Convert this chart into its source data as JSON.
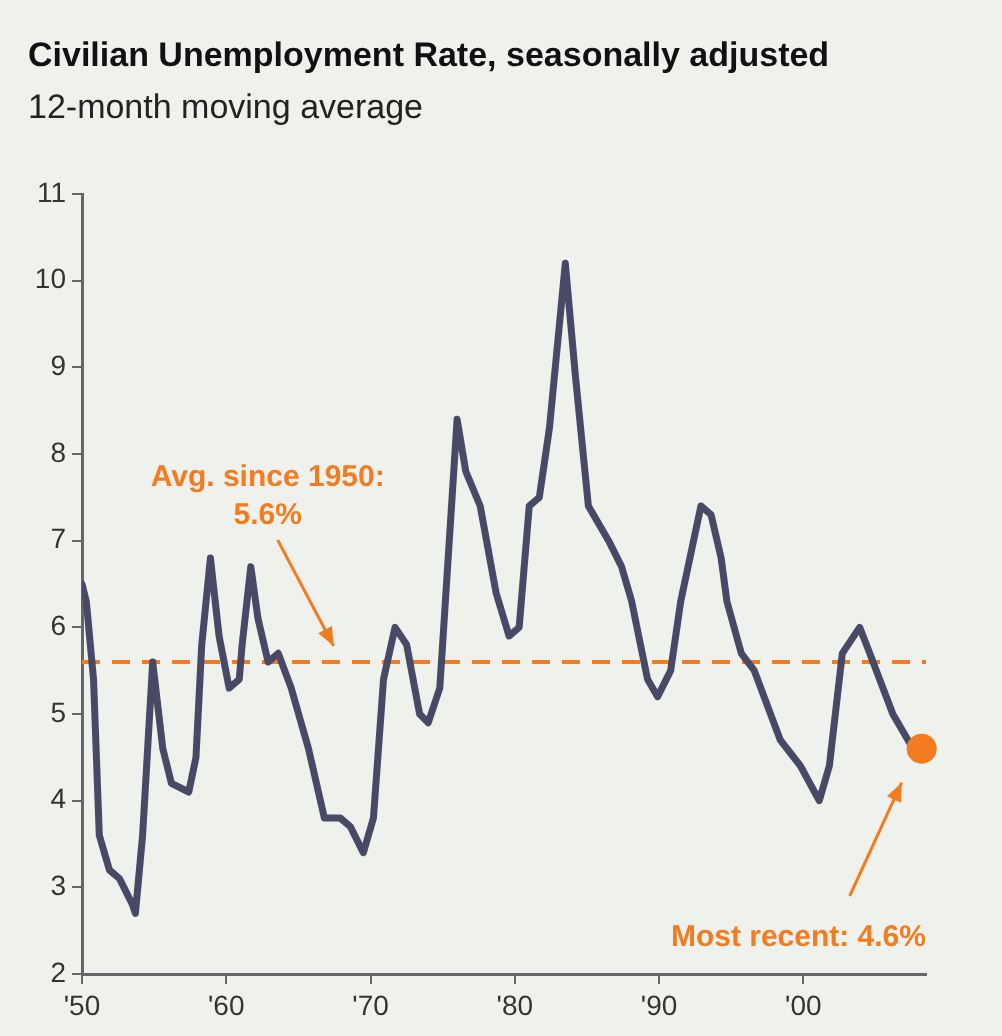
{
  "chart_data": {
    "type": "line",
    "title": "Civilian Unemployment Rate, seasonally adjusted",
    "subtitle": "12-month moving average",
    "x": [
      1950,
      1950.3,
      1950.8,
      1951.2,
      1951.9,
      1952.6,
      1953.5,
      1953.7,
      1954.2,
      1954.9,
      1955.6,
      1956.2,
      1957.4,
      1957.9,
      1958.3,
      1958.9,
      1959.5,
      1960.2,
      1960.9,
      1961.1,
      1961.7,
      1962.2,
      1962.9,
      1963.6,
      1964.5,
      1965.7,
      1966.8,
      1967.9,
      1968.6,
      1969.5,
      1970.2,
      1970.9,
      1971.7,
      1972.5,
      1973.4,
      1974.0,
      1974.8,
      1976.0,
      1976.6,
      1977.6,
      1978.7,
      1979.6,
      1980.3,
      1981.0,
      1981.7,
      1982.4,
      1983.5,
      1984.2,
      1985.1,
      1986.5,
      1987.4,
      1988.1,
      1989.2,
      1989.9,
      1990.8,
      1991.5,
      1992.9,
      1993.6,
      1994.3,
      1994.7,
      1995.7,
      1996.6,
      1998.4,
      1999.8,
      2001.1,
      2001.8,
      2002.7,
      2003.9,
      2004.6,
      2006.2,
      2007.6,
      2008.2
    ],
    "series": [
      {
        "color": "#474a66",
        "marker": "none",
        "values": [
          6.5,
          6.3,
          5.4,
          3.6,
          3.2,
          3.1,
          2.8,
          2.7,
          3.6,
          5.6,
          4.6,
          4.2,
          4.1,
          4.5,
          5.8,
          6.8,
          5.9,
          5.3,
          5.4,
          5.8,
          6.7,
          6.1,
          5.6,
          5.7,
          5.3,
          4.6,
          3.8,
          3.8,
          3.7,
          3.4,
          3.8,
          5.4,
          6.0,
          5.8,
          5.0,
          4.9,
          5.3,
          8.4,
          7.8,
          7.4,
          6.4,
          5.9,
          6.0,
          7.4,
          7.5,
          8.3,
          10.2,
          8.9,
          7.4,
          7.0,
          6.7,
          6.3,
          5.4,
          5.2,
          5.5,
          6.3,
          7.4,
          7.3,
          6.8,
          6.3,
          5.7,
          5.5,
          4.7,
          4.4,
          4.0,
          4.4,
          5.7,
          6.0,
          5.7,
          5.0,
          4.6,
          null
        ]
      },
      {
        "type": "scatter",
        "color": "#f47c20",
        "marker": "circle",
        "values": [
          null,
          null,
          null,
          null,
          null,
          null,
          null,
          null,
          null,
          null,
          null,
          null,
          null,
          null,
          null,
          null,
          null,
          null,
          null,
          null,
          null,
          null,
          null,
          null,
          null,
          null,
          null,
          null,
          null,
          null,
          null,
          null,
          null,
          null,
          null,
          null,
          null,
          null,
          null,
          null,
          null,
          null,
          null,
          null,
          null,
          null,
          null,
          null,
          null,
          null,
          null,
          null,
          null,
          null,
          null,
          null,
          null,
          null,
          null,
          null,
          null,
          null,
          null,
          null,
          null,
          null,
          null,
          null,
          null,
          null,
          null,
          4.6
        ]
      }
    ],
    "xlim": [
      1950,
      2008.5
    ],
    "xticks": [
      {
        "value": 1950,
        "label": "'50"
      },
      {
        "value": 1960,
        "label": "'60"
      },
      {
        "value": 1970,
        "label": "'70"
      },
      {
        "value": 1980,
        "label": "'80"
      },
      {
        "value": 1990,
        "label": "'90"
      },
      {
        "value": 2000,
        "label": "'00"
      }
    ],
    "ylim": [
      2,
      11
    ],
    "yticks": [
      2,
      3,
      4,
      5,
      6,
      7,
      8,
      9,
      10,
      11
    ],
    "ref_lines": [
      {
        "axis": "y",
        "value": 5.6,
        "label": "Avg. since 1950: 5.6%",
        "color": "#f47c20",
        "line_style": "dashed"
      }
    ],
    "annotations": [
      "Most recent: 4.6%"
    ],
    "grid": false,
    "legend": false
  }
}
